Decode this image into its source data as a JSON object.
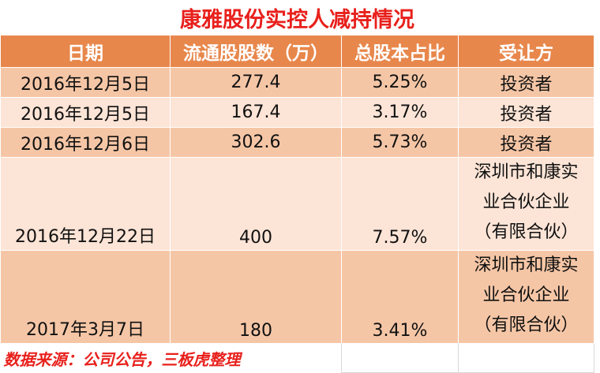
{
  "title": "康雅股份实控人减持情况",
  "table": {
    "header": [
      "日期",
      "流通股股数（万）",
      "总股本占比",
      "受让方"
    ],
    "rows": [
      [
        "2016年12月5日",
        "277.4",
        "5.25%",
        "投资者"
      ],
      [
        "2016年12月5日",
        "167.4",
        "3.17%",
        "投资者"
      ],
      [
        "2016年12月6日",
        "302.6",
        "5.73%",
        "投资者"
      ],
      [
        "2016年12月22日",
        "400",
        "7.57%",
        "深圳市和康实业合伙企业（有限合伙）"
      ],
      [
        "2017年3月7日",
        "180",
        "3.41%",
        "深圳市和康实业合伙企业（有限合伙）"
      ]
    ]
  },
  "source": "数据来源：公司公告，三板虎整理"
}
